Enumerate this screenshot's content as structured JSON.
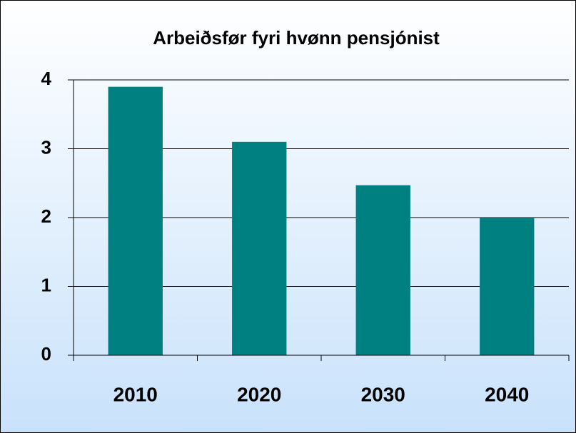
{
  "chart_data": {
    "type": "bar",
    "title": "Arbeiðsfør fyri hvønn pensjónist",
    "categories": [
      "2010",
      "2020",
      "2030",
      "2040"
    ],
    "values": [
      3.9,
      3.1,
      2.47,
      2.0
    ],
    "color": "#008080",
    "ylim": [
      0,
      4
    ],
    "yticks": [
      0,
      1,
      2,
      3,
      4
    ],
    "grid": true
  }
}
